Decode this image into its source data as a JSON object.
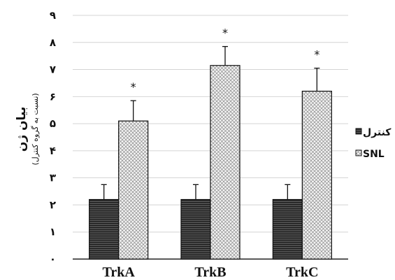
{
  "chart_data": {
    "type": "bar",
    "categories": [
      "TrkA",
      "TrkB",
      "TrkC"
    ],
    "series": [
      {
        "name": "کنترل",
        "values": [
          2.2,
          2.2,
          2.2
        ],
        "errors": [
          0.55,
          0.55,
          0.55
        ],
        "pattern": "horizontal-lines",
        "color": "#222222"
      },
      {
        "name": "SNL",
        "values": [
          5.1,
          7.15,
          6.2
        ],
        "errors": [
          0.75,
          0.7,
          0.85
        ],
        "pattern": "crosshatch",
        "color": "#ffffff"
      }
    ],
    "yticks": [
      "۰",
      "۱",
      "۲",
      "۳",
      "۴",
      "۵",
      "۶",
      "۷",
      "۸",
      "۹"
    ],
    "ylim": [
      0,
      9
    ],
    "ylabel": "بیان ژن",
    "ylabel_sub": "(نسبت به گروه کنترل)",
    "annotations": [
      "*",
      "*",
      "*"
    ],
    "grid": true,
    "legend_position": "right"
  }
}
